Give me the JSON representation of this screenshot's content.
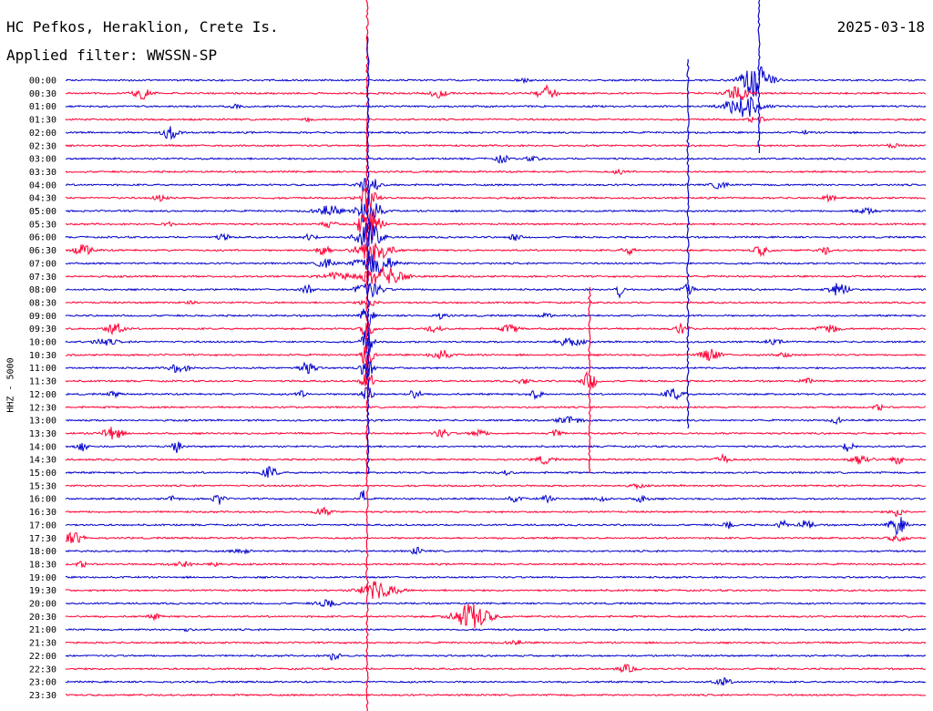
{
  "header": {
    "station": "HC Pefkos, Heraklion, Crete Is.",
    "filter": "Applied filter: WWSSN-SP",
    "date": "2025-03-18"
  },
  "chart_data": {
    "type": "helicorder",
    "title": "HC Pefkos, Heraklion, Crete Is.",
    "ylabel": "HHZ - 5000",
    "row_minutes": 30,
    "trace_colors": [
      "#0000cc",
      "#ff0033"
    ],
    "rows": [
      "00:00",
      "00:30",
      "01:00",
      "01:30",
      "02:00",
      "02:30",
      "03:00",
      "03:30",
      "04:00",
      "04:30",
      "05:00",
      "05:30",
      "06:00",
      "06:30",
      "07:00",
      "07:30",
      "08:00",
      "08:30",
      "09:00",
      "09:30",
      "10:00",
      "10:30",
      "11:00",
      "11:30",
      "12:00",
      "12:30",
      "13:00",
      "13:30",
      "14:00",
      "14:30",
      "15:00",
      "15:30",
      "16:00",
      "16:30",
      "17:00",
      "17:30",
      "18:00",
      "18:30",
      "19:00",
      "19:30",
      "20:00",
      "20:30",
      "21:00",
      "21:30",
      "22:00",
      "22:30",
      "23:00",
      "23:30"
    ],
    "grid": false
  }
}
